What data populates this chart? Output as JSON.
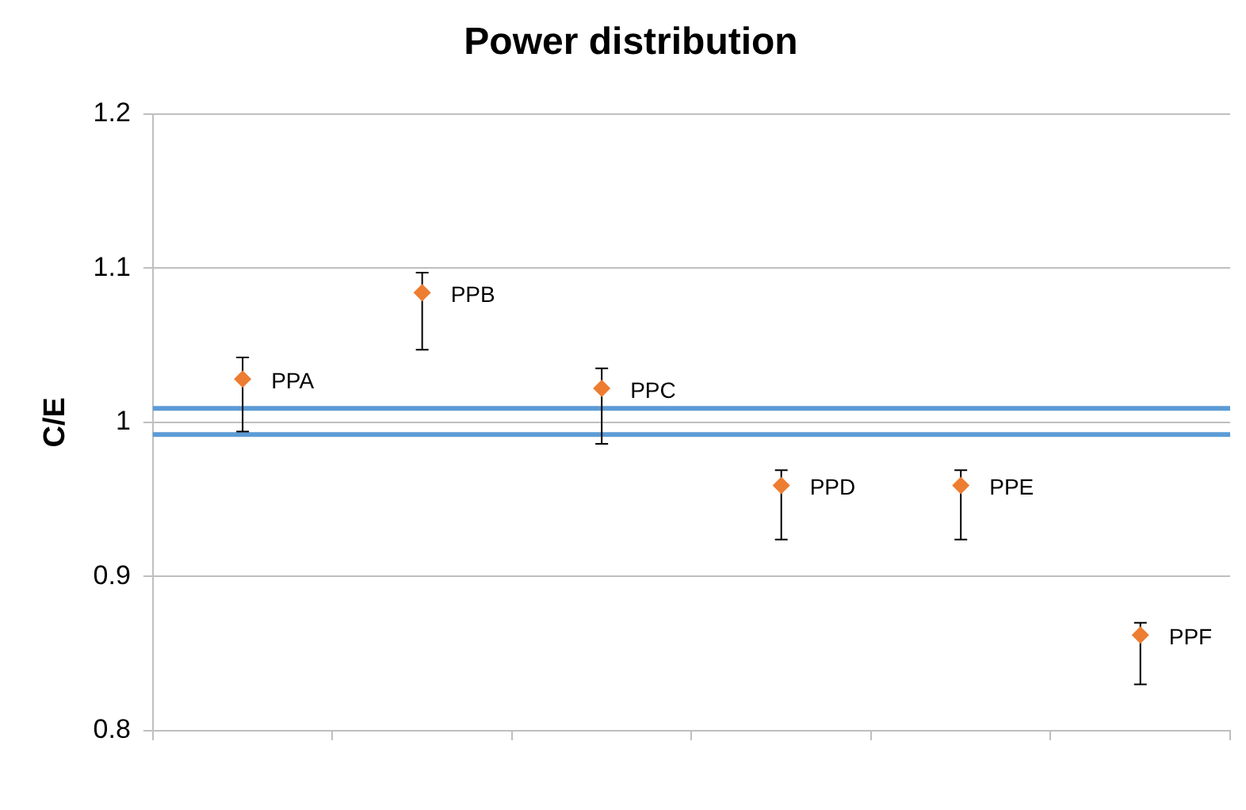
{
  "chart_data": {
    "type": "scatter",
    "title": "Power distribution",
    "ylabel": "C/E",
    "categories": [
      null,
      null,
      null,
      null,
      null,
      null
    ],
    "series": [
      {
        "name": "PPA",
        "color": "#ed7d31",
        "values": [
          1.028,
          null,
          null,
          null,
          null,
          null
        ],
        "errors": [
          [
            0.994,
            1.042
          ],
          null,
          null,
          null,
          null,
          null
        ]
      },
      {
        "name": "PPB",
        "color": "#ed7d31",
        "values": [
          null,
          1.084,
          null,
          null,
          null,
          null
        ],
        "errors": [
          null,
          [
            1.047,
            1.097
          ],
          null,
          null,
          null,
          null
        ]
      },
      {
        "name": "PPC",
        "color": "#ed7d31",
        "values": [
          null,
          null,
          1.022,
          null,
          null,
          null
        ],
        "errors": [
          null,
          null,
          [
            0.986,
            1.035
          ],
          null,
          null,
          null
        ]
      },
      {
        "name": "PPD",
        "color": "#ed7d31",
        "values": [
          null,
          null,
          null,
          0.959,
          null,
          null
        ],
        "errors": [
          null,
          null,
          null,
          [
            0.924,
            0.969
          ],
          null,
          null
        ]
      },
      {
        "name": "PPE",
        "color": "#ed7d31",
        "values": [
          null,
          null,
          null,
          null,
          0.959,
          null
        ],
        "errors": [
          null,
          null,
          null,
          null,
          [
            0.924,
            0.969
          ],
          null
        ]
      },
      {
        "name": "PPF",
        "color": "#ed7d31",
        "values": [
          null,
          null,
          null,
          null,
          null,
          0.862
        ],
        "errors": [
          null,
          null,
          null,
          null,
          null,
          [
            0.83,
            0.87
          ]
        ]
      }
    ],
    "ref_lines": [
      {
        "axis": "y",
        "value": 1.009,
        "color": "#5b9bd5"
      },
      {
        "axis": "y",
        "value": 0.992,
        "color": "#5b9bd5"
      }
    ],
    "ylim": [
      0.8,
      1.2
    ],
    "yticks": [
      0.8,
      0.9,
      1,
      1.1,
      1.2
    ],
    "grid": "y",
    "legend": false,
    "marker": "diamond"
  }
}
